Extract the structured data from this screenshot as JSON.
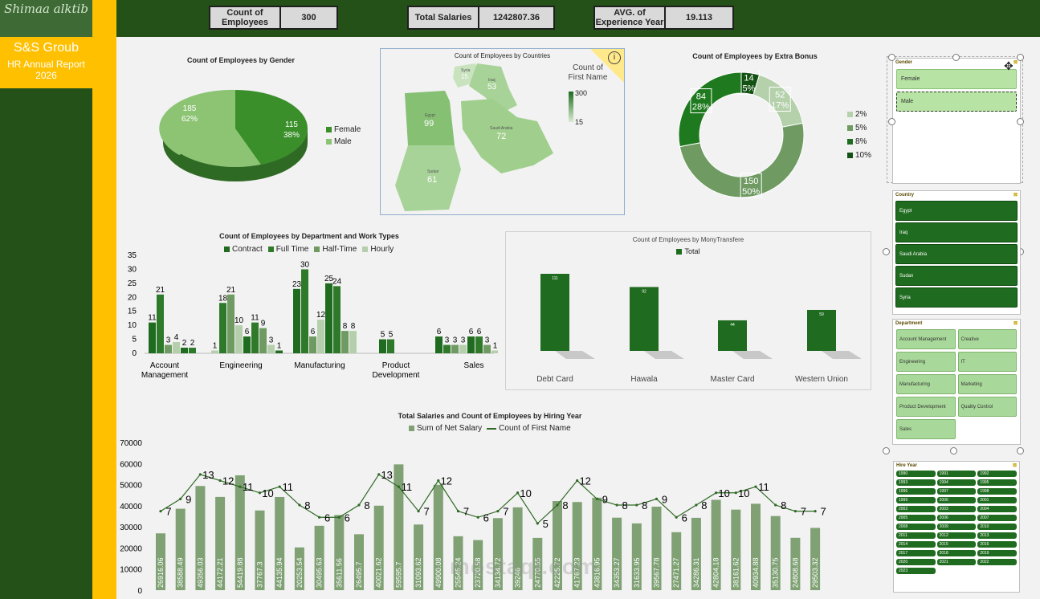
{
  "brand": {
    "logo_text": "Shimaa alktib",
    "company": "S&S Groub",
    "report_line1": "HR Annual Report",
    "report_line2": "2026"
  },
  "kpis": [
    {
      "label": "Count of Employees",
      "value": "300"
    },
    {
      "label": "Total Salaries",
      "value": "1242807.36"
    },
    {
      "label": "AVG. of Experience Year",
      "value": "19.113"
    }
  ],
  "gender_chart": {
    "title": "Count of Employees by Gender",
    "slices": [
      {
        "name": "Female",
        "value": 115,
        "pct": "38%",
        "color": "#3a8f2a"
      },
      {
        "name": "Male",
        "value": 185,
        "pct": "62%",
        "color": "#8cc474"
      }
    ]
  },
  "countries_chart": {
    "title": "Count of Employees by Countries",
    "legend_title": "Count of First Name",
    "legend_max": "300",
    "legend_min": "15",
    "regions": [
      {
        "name": "Syria",
        "value": "15"
      },
      {
        "name": "Iraq",
        "value": "53"
      },
      {
        "name": "Egypt",
        "value": "99"
      },
      {
        "name": "Saudi Arabia",
        "value": "72"
      },
      {
        "name": "Sudan",
        "value": "61"
      }
    ],
    "info_icon": "info-icon"
  },
  "bonus_chart": {
    "title": "Count of Employees by Extra Bonus",
    "legend": [
      {
        "name": "2%",
        "color": "#b5d1ac"
      },
      {
        "name": "5%",
        "color": "#6f9b63"
      },
      {
        "name": "8%",
        "color": "#1f6b1f"
      },
      {
        "name": "10%",
        "color": "#145214"
      }
    ],
    "slices": [
      {
        "value": 52,
        "pct": "17%",
        "color": "#b5d1ac"
      },
      {
        "value": 150,
        "pct": "50%",
        "color": "#6f9b63"
      },
      {
        "value": 84,
        "pct": "28%",
        "color": "#1f7a1f"
      },
      {
        "value": 14,
        "pct": "5%",
        "color": "#145214"
      }
    ]
  },
  "chart_data": [
    {
      "type": "bar",
      "title": "Count of Employees by Department and Work Types",
      "categories": [
        "Account Management",
        "Engineering",
        "Manufacturing",
        "Product Development",
        "Sales"
      ],
      "ylim": [
        0,
        35
      ],
      "yticks": [
        0,
        5,
        10,
        15,
        20,
        25,
        30,
        35
      ],
      "series": [
        {
          "name": "Contract",
          "color": "#1f6b1f",
          "values": [
            11,
            18,
            23,
            5,
            6
          ]
        },
        {
          "name": "Full Time",
          "color": "#2f7a2a",
          "values": [
            21,
            21,
            30,
            5,
            6
          ]
        },
        {
          "name": "Half-Time",
          "color": "#6f9b63",
          "values": [
            3,
            10,
            6,
            null,
            3
          ]
        },
        {
          "name": "Hourly",
          "color": "#b5cfac",
          "values": [
            4,
            6,
            12,
            null,
            1
          ]
        }
      ],
      "extra_bars": {
        "note": "",
        "values": [
          [
            2,
            2
          ],
          [
            1
          ],
          [
            9,
            3,
            1
          ],
          [
            25,
            24,
            8,
            8
          ],
          [
            6,
            3,
            3,
            3
          ]
        ]
      }
    },
    {
      "type": "bar",
      "title": "Count of Employees by MonyTransfere",
      "legend": "Total",
      "categories": [
        "Debt Card",
        "Hawala",
        "Master Card",
        "Western Union"
      ],
      "values": [
        111,
        92,
        44,
        59
      ]
    },
    {
      "type": "bar+line",
      "title": "Total Salaries and Count of Employees by Hiring Year",
      "legend": [
        "Sum of Net Salary",
        "Count of First Name"
      ],
      "ylim": [
        0,
        70000
      ],
      "yticks": [
        0,
        10000,
        20000,
        30000,
        40000,
        50000,
        60000,
        70000
      ],
      "salaries": [
        26916.06,
        38588.49,
        49356.03,
        44172.21,
        54419.88,
        37767.3,
        44135.94,
        20253.54,
        30495.63,
        35611.56,
        26495.7,
        40021.62,
        59595.7,
        31093.62,
        49900.08,
        25545.24,
        23720.58,
        34134.72,
        39246,
        24770.55,
        42225.72,
        41767.23,
        43816.95,
        34353.27,
        31633.95,
        39567.78,
        27471.27,
        34286.31,
        42804.18,
        38161.62,
        40934.88,
        35130.75,
        24808.68,
        29503.32
      ],
      "counts": [
        7,
        9,
        13,
        12,
        11,
        10,
        11,
        8,
        6,
        6,
        8,
        13,
        11,
        7,
        12,
        7,
        6,
        7,
        10,
        5,
        8,
        12,
        9,
        8,
        8,
        9,
        6,
        8,
        10,
        10,
        11,
        8,
        7,
        7
      ]
    }
  ],
  "slicers": {
    "gender": {
      "title": "Gender",
      "items": [
        "Female",
        "Male"
      ]
    },
    "country": {
      "title": "Country",
      "items": [
        "Egypt",
        "Iraq",
        "Saudi Arabia",
        "Sudan",
        "Syria"
      ]
    },
    "department": {
      "title": "Department",
      "items": [
        "Account Management",
        "Creative",
        "Engineering",
        "IT",
        "Manufacturing",
        "Marketing",
        "Product Development",
        "Quality Control",
        "Sales"
      ]
    },
    "hire_year": {
      "title": "Hire Year",
      "items": [
        "1990",
        "1991",
        "1992",
        "1993",
        "1994",
        "1995",
        "1996",
        "1997",
        "1998",
        "1999",
        "2000",
        "2001",
        "2002",
        "2003",
        "2004",
        "2005",
        "2006",
        "2007",
        "2008",
        "2009",
        "2010",
        "2011",
        "2012",
        "2013",
        "2014",
        "2015",
        "2016",
        "2017",
        "2018",
        "2019",
        "2020",
        "2021",
        "2022",
        "2023"
      ]
    }
  },
  "watermark": "mostaql.com"
}
